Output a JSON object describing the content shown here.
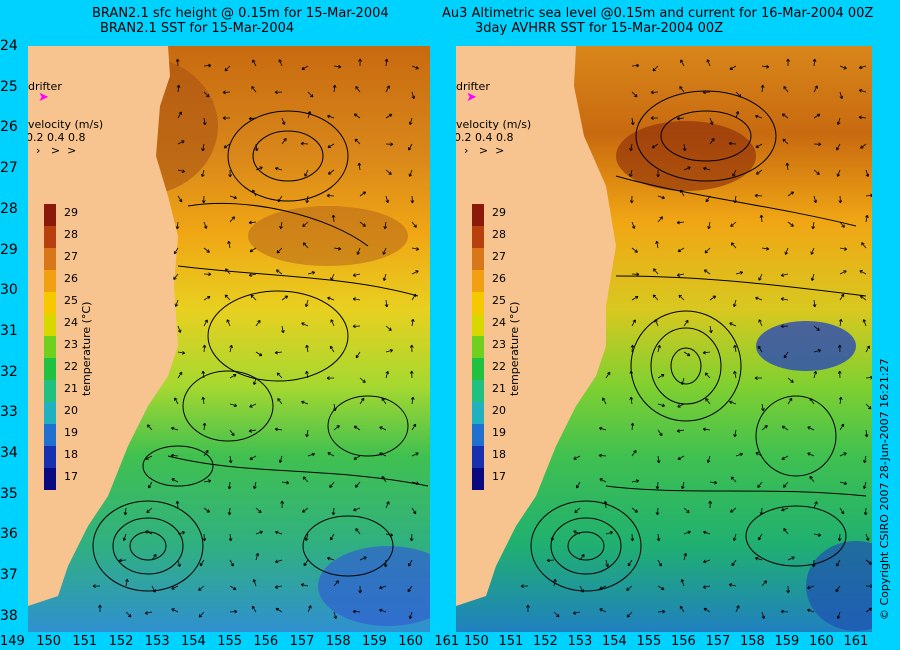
{
  "left_panel": {
    "title_line1": "BRAN2.1 sfc height @ 0.15m for 15-Mar-2004",
    "title_line2": "BRAN2.1 SST for 15-Mar-2004",
    "drifter_label": "drifter",
    "velocity_label": "velocity (m/s)",
    "velocity_scale": "0.2 0.4 0.8"
  },
  "right_panel": {
    "title_line1": "Au3 Altimetric sea level  @0.15m and current for 16-Mar-2004 00Z",
    "title_line2": "3day AVHRR SST for 15-Mar-2004 00Z",
    "drifter_label": "drifter",
    "velocity_label": "velocity (m/s)",
    "velocity_scale": "0.2 0.4 0.8"
  },
  "colorbar": {
    "axis_label": "temperature (°C)",
    "ticks": [
      "29",
      "28",
      "27",
      "26",
      "25",
      "24",
      "23",
      "22",
      "21",
      "20",
      "19",
      "18",
      "17"
    ],
    "colors": [
      "#8b1a0a",
      "#b8400f",
      "#d8761a",
      "#f0a010",
      "#f6c800",
      "#d8d800",
      "#70d020",
      "#20c040",
      "#20c080",
      "#20b0c0",
      "#2070d0",
      "#1830b0",
      "#0a0a80"
    ]
  },
  "latitude_ticks": [
    "24",
    "25",
    "26",
    "27",
    "28",
    "29",
    "30",
    "31",
    "32",
    "33",
    "34",
    "35",
    "36",
    "37",
    "38"
  ],
  "longitude_ticks_left": [
    "149",
    "150",
    "151",
    "152",
    "153",
    "154",
    "155",
    "156",
    "157",
    "158",
    "159",
    "160",
    "161"
  ],
  "longitude_ticks_right": [
    "150",
    "151",
    "152",
    "153",
    "154",
    "155",
    "156",
    "157",
    "158",
    "159",
    "160",
    "161"
  ],
  "copyright": "© Copyright CSIRO 2007    28-Jun-2007 16:21:27",
  "colors": {
    "background": "#00d2ff",
    "land": "#f7c48f",
    "drifter": "#ff00ff"
  }
}
